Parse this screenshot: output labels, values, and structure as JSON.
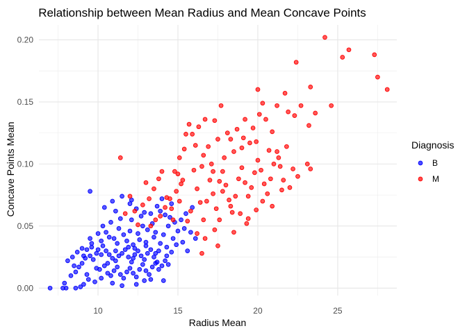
{
  "chart_data": {
    "type": "scatter",
    "title": "Relationship between Mean Radius and Mean Concave Points",
    "xlabel": "Radius Mean",
    "ylabel": "Concave Points Mean",
    "xlim": [
      6.3,
      28.7
    ],
    "ylim": [
      -0.006,
      0.212
    ],
    "x_ticks": [
      10,
      15,
      20,
      25
    ],
    "y_ticks": [
      "0.00",
      "0.05",
      "0.10",
      "0.15",
      "0.20"
    ],
    "grid": true,
    "legend": {
      "title": "Diagnosis",
      "placement": "right"
    },
    "series": [
      {
        "name": "B",
        "color": "#0000ff",
        "points": [
          [
            7.0,
            0.0
          ],
          [
            7.8,
            0.0
          ],
          [
            8.0,
            0.0
          ],
          [
            8.6,
            0.0
          ],
          [
            8.9,
            0.001
          ],
          [
            9.1,
            0.003
          ],
          [
            9.4,
            0.007
          ],
          [
            7.9,
            0.004
          ],
          [
            8.3,
            0.01
          ],
          [
            8.6,
            0.013
          ],
          [
            8.8,
            0.017
          ],
          [
            9.0,
            0.02
          ],
          [
            9.2,
            0.024
          ],
          [
            9.5,
            0.026
          ],
          [
            9.7,
            0.023
          ],
          [
            9.9,
            0.028
          ],
          [
            8.1,
            0.022
          ],
          [
            8.4,
            0.025
          ],
          [
            8.7,
            0.029
          ],
          [
            9.3,
            0.031
          ],
          [
            9.6,
            0.033
          ],
          [
            10.0,
            0.031
          ],
          [
            10.3,
            0.034
          ],
          [
            10.5,
            0.03
          ],
          [
            10.7,
            0.027
          ],
          [
            10.9,
            0.024
          ],
          [
            11.1,
            0.022
          ],
          [
            11.3,
            0.026
          ],
          [
            11.5,
            0.028
          ],
          [
            11.7,
            0.031
          ],
          [
            11.9,
            0.025
          ],
          [
            12.1,
            0.021
          ],
          [
            12.3,
            0.027
          ],
          [
            12.5,
            0.03
          ],
          [
            12.7,
            0.026
          ],
          [
            12.9,
            0.023
          ],
          [
            13.1,
            0.028
          ],
          [
            13.3,
            0.031
          ],
          [
            13.5,
            0.025
          ],
          [
            13.7,
            0.021
          ],
          [
            10.1,
            0.015
          ],
          [
            10.4,
            0.018
          ],
          [
            10.6,
            0.012
          ],
          [
            10.8,
            0.01
          ],
          [
            11.0,
            0.014
          ],
          [
            11.2,
            0.017
          ],
          [
            11.4,
            0.011
          ],
          [
            11.6,
            0.008
          ],
          [
            11.8,
            0.013
          ],
          [
            12.0,
            0.016
          ],
          [
            12.2,
            0.012
          ],
          [
            12.4,
            0.009
          ],
          [
            12.6,
            0.015
          ],
          [
            12.8,
            0.019
          ],
          [
            13.0,
            0.014
          ],
          [
            13.2,
            0.011
          ],
          [
            13.4,
            0.017
          ],
          [
            13.6,
            0.02
          ],
          [
            13.8,
            0.015
          ],
          [
            14.0,
            0.018
          ],
          [
            14.2,
            0.022
          ],
          [
            14.4,
            0.019
          ],
          [
            9.8,
            0.005
          ],
          [
            10.2,
            0.008
          ],
          [
            10.9,
            0.004
          ],
          [
            11.5,
            0.002
          ],
          [
            12.4,
            0.003
          ],
          [
            12.9,
            0.006
          ],
          [
            13.3,
            0.007
          ],
          [
            14.1,
            0.006
          ],
          [
            9.3,
            0.011
          ],
          [
            9.9,
            0.016
          ],
          [
            10.6,
            0.02
          ],
          [
            11.2,
            0.036
          ],
          [
            11.8,
            0.038
          ],
          [
            12.2,
            0.035
          ],
          [
            12.6,
            0.039
          ],
          [
            13.0,
            0.037
          ],
          [
            13.5,
            0.041
          ],
          [
            13.9,
            0.036
          ],
          [
            14.3,
            0.033
          ],
          [
            14.6,
            0.029
          ],
          [
            11.0,
            0.04
          ],
          [
            11.6,
            0.043
          ],
          [
            12.0,
            0.046
          ],
          [
            12.5,
            0.044
          ],
          [
            13.1,
            0.047
          ],
          [
            13.6,
            0.045
          ],
          [
            14.1,
            0.043
          ],
          [
            14.7,
            0.04
          ],
          [
            10.5,
            0.045
          ],
          [
            11.3,
            0.048
          ],
          [
            12.8,
            0.05
          ],
          [
            13.4,
            0.052
          ],
          [
            14.4,
            0.05
          ],
          [
            15.0,
            0.046
          ],
          [
            9.5,
            0.04
          ],
          [
            10.0,
            0.044
          ],
          [
            10.3,
            0.05
          ],
          [
            10.8,
            0.053
          ],
          [
            11.4,
            0.056
          ],
          [
            12.1,
            0.055
          ],
          [
            12.7,
            0.058
          ],
          [
            13.3,
            0.06
          ],
          [
            13.9,
            0.062
          ],
          [
            14.5,
            0.057
          ],
          [
            15.2,
            0.055
          ],
          [
            15.5,
            0.06
          ],
          [
            9.5,
            0.078
          ],
          [
            10.4,
            0.065
          ],
          [
            11.1,
            0.062
          ],
          [
            12.0,
            0.068
          ],
          [
            12.4,
            0.064
          ],
          [
            12.9,
            0.061
          ],
          [
            13.7,
            0.066
          ],
          [
            14.2,
            0.059
          ],
          [
            14.8,
            0.053
          ],
          [
            15.4,
            0.048
          ],
          [
            15.8,
            0.045
          ],
          [
            9.0,
            0.032
          ],
          [
            9.6,
            0.036
          ],
          [
            10.2,
            0.038
          ],
          [
            10.7,
            0.041
          ],
          [
            11.9,
            0.033
          ],
          [
            12.3,
            0.032
          ],
          [
            13.0,
            0.034
          ],
          [
            13.8,
            0.03
          ],
          [
            14.9,
            0.035
          ],
          [
            15.3,
            0.037
          ],
          [
            11.5,
            0.074
          ],
          [
            10.9,
            0.07
          ],
          [
            12.1,
            0.071
          ],
          [
            14.0,
            0.072
          ],
          [
            14.6,
            0.068
          ],
          [
            15.9,
            0.065
          ],
          [
            16.1,
            0.04
          ],
          [
            15.6,
            0.03
          ],
          [
            14.3,
            0.026
          ],
          [
            13.6,
            0.028
          ],
          [
            12.2,
            0.024
          ],
          [
            11.1,
            0.03
          ],
          [
            10.2,
            0.027
          ],
          [
            9.1,
            0.026
          ],
          [
            8.5,
            0.018
          ]
        ]
      },
      {
        "name": "M",
        "color": "#ff0000",
        "points": [
          [
            11.4,
            0.105
          ],
          [
            12.0,
            0.074
          ],
          [
            12.3,
            0.062
          ],
          [
            12.8,
            0.067
          ],
          [
            13.2,
            0.072
          ],
          [
            13.0,
            0.085
          ],
          [
            13.5,
            0.08
          ],
          [
            13.8,
            0.088
          ],
          [
            14.0,
            0.094
          ],
          [
            14.3,
            0.073
          ],
          [
            14.6,
            0.064
          ],
          [
            14.9,
            0.078
          ],
          [
            15.0,
            0.092
          ],
          [
            15.3,
            0.087
          ],
          [
            15.5,
            0.124
          ],
          [
            15.7,
            0.132
          ],
          [
            15.9,
            0.124
          ],
          [
            16.0,
            0.095
          ],
          [
            16.2,
            0.08
          ],
          [
            16.4,
            0.069
          ],
          [
            16.6,
            0.055
          ],
          [
            16.8,
            0.07
          ],
          [
            17.0,
            0.087
          ],
          [
            17.2,
            0.076
          ],
          [
            17.4,
            0.064
          ],
          [
            17.6,
            0.086
          ],
          [
            17.8,
            0.094
          ],
          [
            18.0,
            0.083
          ],
          [
            18.2,
            0.071
          ],
          [
            18.4,
            0.061
          ],
          [
            18.6,
            0.074
          ],
          [
            18.8,
            0.088
          ],
          [
            19.0,
            0.097
          ],
          [
            19.2,
            0.085
          ],
          [
            19.4,
            0.074
          ],
          [
            19.6,
            0.081
          ],
          [
            19.8,
            0.093
          ],
          [
            20.0,
            0.103
          ],
          [
            20.2,
            0.095
          ],
          [
            20.4,
            0.084
          ],
          [
            20.6,
            0.076
          ],
          [
            20.8,
            0.088
          ],
          [
            21.0,
            0.1
          ],
          [
            21.2,
            0.11
          ],
          [
            21.4,
            0.098
          ],
          [
            21.6,
            0.087
          ],
          [
            21.8,
            0.114
          ],
          [
            22.0,
            0.081
          ],
          [
            16.3,
            0.13
          ],
          [
            16.7,
            0.136
          ],
          [
            17.3,
            0.135
          ],
          [
            17.7,
            0.147
          ],
          [
            18.3,
            0.12
          ],
          [
            18.7,
            0.128
          ],
          [
            19.2,
            0.136
          ],
          [
            19.7,
            0.129
          ],
          [
            20.1,
            0.14
          ],
          [
            20.5,
            0.136
          ],
          [
            20.3,
            0.149
          ],
          [
            20.9,
            0.126
          ],
          [
            21.2,
            0.147
          ],
          [
            21.7,
            0.157
          ],
          [
            21.9,
            0.142
          ],
          [
            22.3,
            0.139
          ],
          [
            22.7,
            0.147
          ],
          [
            20.0,
            0.16
          ],
          [
            23.3,
            0.162
          ],
          [
            23.6,
            0.141
          ],
          [
            23.2,
            0.131
          ],
          [
            23.1,
            0.1
          ],
          [
            23.3,
            0.096
          ],
          [
            24.2,
            0.202
          ],
          [
            25.3,
            0.186
          ],
          [
            25.7,
            0.192
          ],
          [
            27.3,
            0.188
          ],
          [
            27.5,
            0.17
          ],
          [
            28.1,
            0.16
          ],
          [
            24.6,
            0.147
          ],
          [
            22.4,
            0.182
          ],
          [
            14.8,
            0.094
          ],
          [
            15.2,
            0.084
          ],
          [
            15.8,
            0.062
          ],
          [
            16.5,
            0.098
          ],
          [
            17.1,
            0.1
          ],
          [
            17.9,
            0.105
          ],
          [
            18.5,
            0.11
          ],
          [
            19.0,
            0.113
          ],
          [
            19.5,
            0.117
          ],
          [
            16.9,
            0.114
          ],
          [
            17.5,
            0.12
          ],
          [
            18.1,
            0.125
          ],
          [
            19.1,
            0.121
          ],
          [
            19.9,
            0.118
          ],
          [
            20.7,
            0.111
          ],
          [
            21.3,
            0.105
          ],
          [
            22.2,
            0.096
          ],
          [
            15.1,
            0.105
          ],
          [
            15.4,
            0.112
          ],
          [
            16.1,
            0.115
          ],
          [
            16.6,
            0.107
          ],
          [
            17.2,
            0.094
          ],
          [
            17.8,
            0.078
          ],
          [
            18.3,
            0.066
          ],
          [
            18.9,
            0.06
          ],
          [
            19.4,
            0.056
          ],
          [
            19.9,
            0.063
          ],
          [
            20.3,
            0.07
          ],
          [
            20.9,
            0.066
          ],
          [
            21.5,
            0.079
          ],
          [
            22.5,
            0.09
          ],
          [
            14.5,
            0.072
          ],
          [
            14.2,
            0.065
          ],
          [
            13.9,
            0.058
          ],
          [
            13.6,
            0.055
          ],
          [
            13.3,
            0.05
          ],
          [
            16.2,
            0.044
          ],
          [
            16.7,
            0.04
          ],
          [
            17.3,
            0.047
          ],
          [
            17.6,
            0.055
          ],
          [
            15.6,
            0.054
          ],
          [
            16.5,
            0.028
          ],
          [
            17.5,
            0.034
          ],
          [
            18.5,
            0.045
          ],
          [
            19.3,
            0.052
          ],
          [
            15.1,
            0.07
          ],
          [
            14.7,
            0.055
          ],
          [
            12.5,
            0.051
          ],
          [
            11.7,
            0.06
          ]
        ]
      }
    ]
  }
}
